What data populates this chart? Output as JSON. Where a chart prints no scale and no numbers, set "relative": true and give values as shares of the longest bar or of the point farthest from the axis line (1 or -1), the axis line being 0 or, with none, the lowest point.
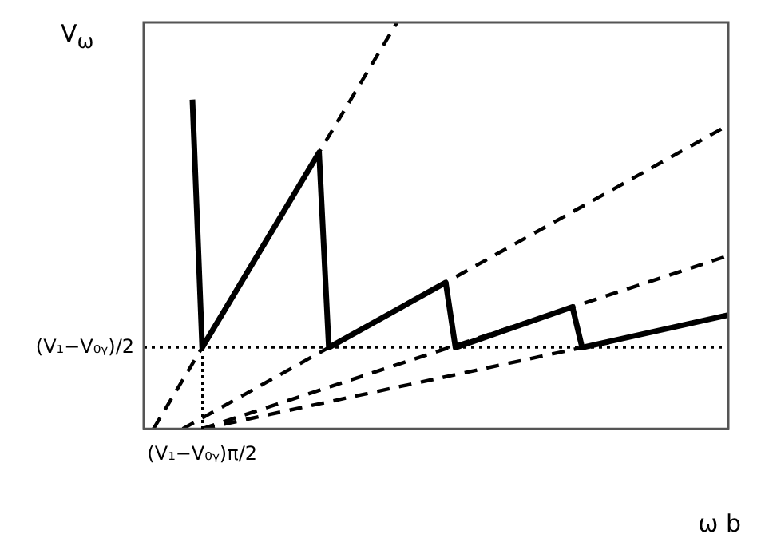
{
  "chart_data": {
    "type": "line",
    "xlabel": "ω b",
    "ylabel": "V$_{ω}$",
    "relative": true,
    "categories": [
      null,
      null,
      null,
      null,
      null,
      null,
      null,
      null,
      null,
      null,
      null,
      null,
      null,
      null,
      null,
      null,
      null,
      null,
      null,
      null,
      null,
      null,
      null,
      null,
      null,
      null,
      null,
      null,
      null,
      null,
      null,
      null,
      null,
      null,
      null,
      null,
      null,
      null,
      null,
      null,
      null,
      null,
      null,
      null,
      null,
      null,
      null,
      null,
      null,
      null,
      null,
      null,
      null,
      null,
      null,
      null,
      null,
      null,
      null,
      null,
      null
    ],
    "annotations": [
      "(V₁−V₀ᵧ)π/2"
    ],
    "legend": false,
    "marker": "none",
    "ref_lines": [
      {
        "axis": "y",
        "value": 0.2,
        "label": "(V₁−V₀ᵧ)/2",
        "line_style": "dotted",
        "color": "#000000"
      }
    ],
    "series": [
      {
        "color": "#000000",
        "line_style": "dashed",
        "values": [
          null,
          0,
          null,
          null,
          null,
          null,
          null,
          null,
          null,
          null,
          null,
          null,
          null,
          null,
          null,
          null,
          null,
          null,
          null,
          null,
          null,
          null,
          null,
          null,
          null,
          null,
          1,
          null,
          null,
          null,
          null,
          null,
          null,
          null,
          null,
          null,
          null,
          null,
          null,
          null,
          null,
          null,
          null,
          null,
          null,
          null,
          null,
          null,
          null,
          null,
          null,
          null,
          null,
          null,
          null,
          null,
          null,
          null,
          null,
          null,
          null
        ]
      },
      {
        "color": "#000000",
        "line_style": "dashed",
        "values": [
          null,
          null,
          null,
          null,
          0,
          null,
          null,
          null,
          null,
          null,
          null,
          null,
          null,
          null,
          null,
          null,
          null,
          null,
          null,
          null,
          null,
          null,
          null,
          null,
          null,
          null,
          null,
          null,
          null,
          null,
          null,
          null,
          null,
          null,
          null,
          null,
          null,
          null,
          null,
          null,
          null,
          null,
          null,
          null,
          null,
          null,
          null,
          null,
          null,
          null,
          null,
          null,
          null,
          null,
          null,
          null,
          null,
          null,
          null,
          null,
          0.747
        ]
      },
      {
        "color": "#000000",
        "line_style": "dashed",
        "values": [
          null,
          null,
          null,
          null,
          null,
          null,
          0,
          null,
          null,
          null,
          null,
          null,
          null,
          null,
          null,
          null,
          null,
          null,
          null,
          null,
          null,
          null,
          null,
          null,
          null,
          null,
          null,
          null,
          null,
          null,
          null,
          null,
          null,
          null,
          null,
          null,
          null,
          null,
          null,
          null,
          null,
          null,
          null,
          null,
          null,
          null,
          null,
          null,
          null,
          null,
          null,
          null,
          null,
          null,
          null,
          null,
          null,
          null,
          null,
          null,
          0.426
        ]
      },
      {
        "color": "#000000",
        "line_style": "dashed",
        "values": [
          null,
          null,
          null,
          null,
          null,
          null,
          0,
          null,
          null,
          null,
          null,
          null,
          null,
          null,
          null,
          null,
          null,
          null,
          null,
          null,
          null,
          null,
          null,
          null,
          null,
          null,
          null,
          null,
          null,
          null,
          null,
          null,
          null,
          null,
          null,
          null,
          null,
          null,
          null,
          null,
          null,
          null,
          null,
          null,
          null,
          0.2,
          null,
          null,
          null,
          null,
          null,
          null,
          null,
          null,
          null,
          null,
          null,
          null,
          null,
          null,
          null
        ]
      },
      {
        "color": "#000000",
        "line_style": "solid",
        "values": [
          null,
          null,
          null,
          null,
          null,
          0.81,
          0.2,
          null,
          null,
          null,
          null,
          null,
          null,
          null,
          null,
          null,
          null,
          null,
          0.68,
          0.2,
          null,
          null,
          null,
          null,
          null,
          null,
          null,
          null,
          null,
          null,
          null,
          0.36,
          0.2,
          null,
          null,
          null,
          null,
          null,
          null,
          null,
          null,
          null,
          null,
          null,
          0.3,
          0.2,
          null,
          null,
          null,
          null,
          null,
          null,
          null,
          null,
          null,
          null,
          null,
          null,
          null,
          null,
          0.28
        ]
      }
    ]
  }
}
